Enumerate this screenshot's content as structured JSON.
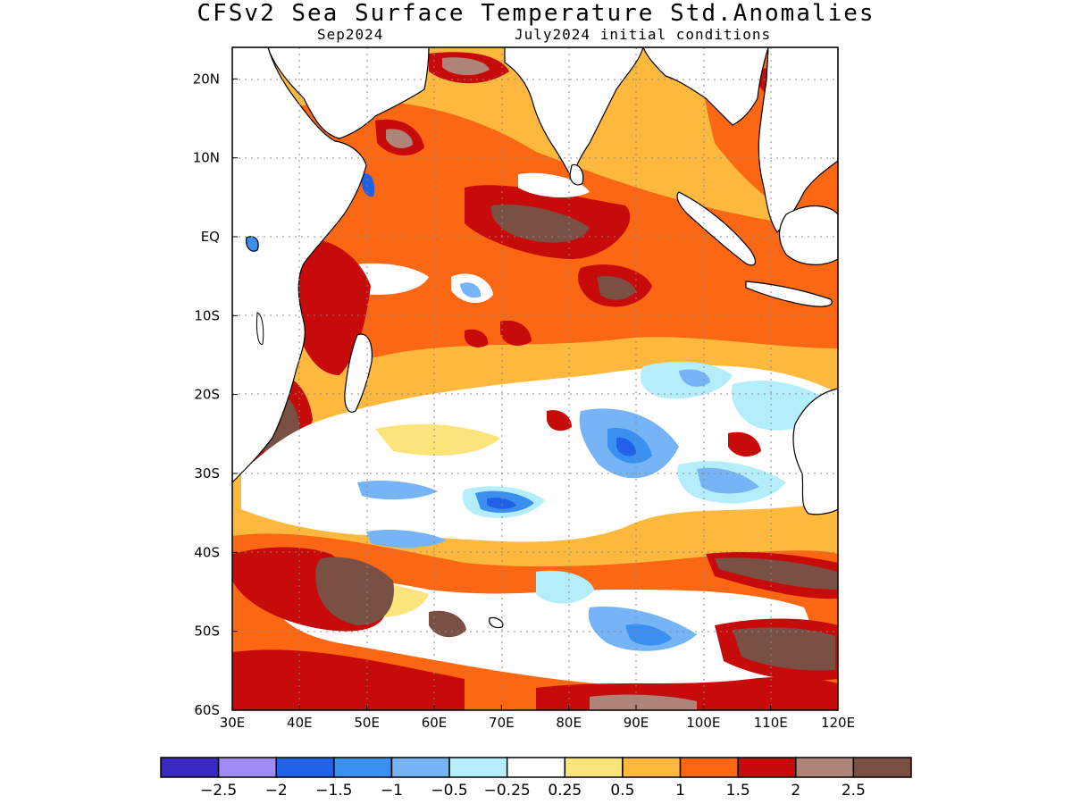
{
  "title": "CFSv2 Sea Surface Temperature Std.Anomalies",
  "subtitle_left": "Sep2024",
  "subtitle_right": "July2024 initial conditions",
  "map": {
    "lon_range": [
      30,
      120
    ],
    "lat_range": [
      -60,
      24
    ],
    "lon_ticks": [
      "30E",
      "40E",
      "50E",
      "60E",
      "70E",
      "80E",
      "90E",
      "100E",
      "110E",
      "120E"
    ],
    "lat_ticks": [
      "20N",
      "10N",
      "EQ",
      "10S",
      "20S",
      "30S",
      "40S",
      "50S",
      "60S"
    ],
    "land_color": "#ffffff",
    "coast_color": "#000000"
  },
  "colorbar": {
    "colors": [
      "#3a28c3",
      "#9f8bf5",
      "#2061e5",
      "#3b8ff0",
      "#76b4f6",
      "#b4eefb",
      "#ffffff",
      "#fde37c",
      "#fdb93e",
      "#fb6712",
      "#c70a0a",
      "#ae8478",
      "#7a4f44"
    ],
    "labels": [
      "−2.5",
      "−2",
      "−1.5",
      "−1",
      "−0.5",
      "−0.25",
      "0.25",
      "0.5",
      "1",
      "1.5",
      "2",
      "2.5"
    ]
  }
}
